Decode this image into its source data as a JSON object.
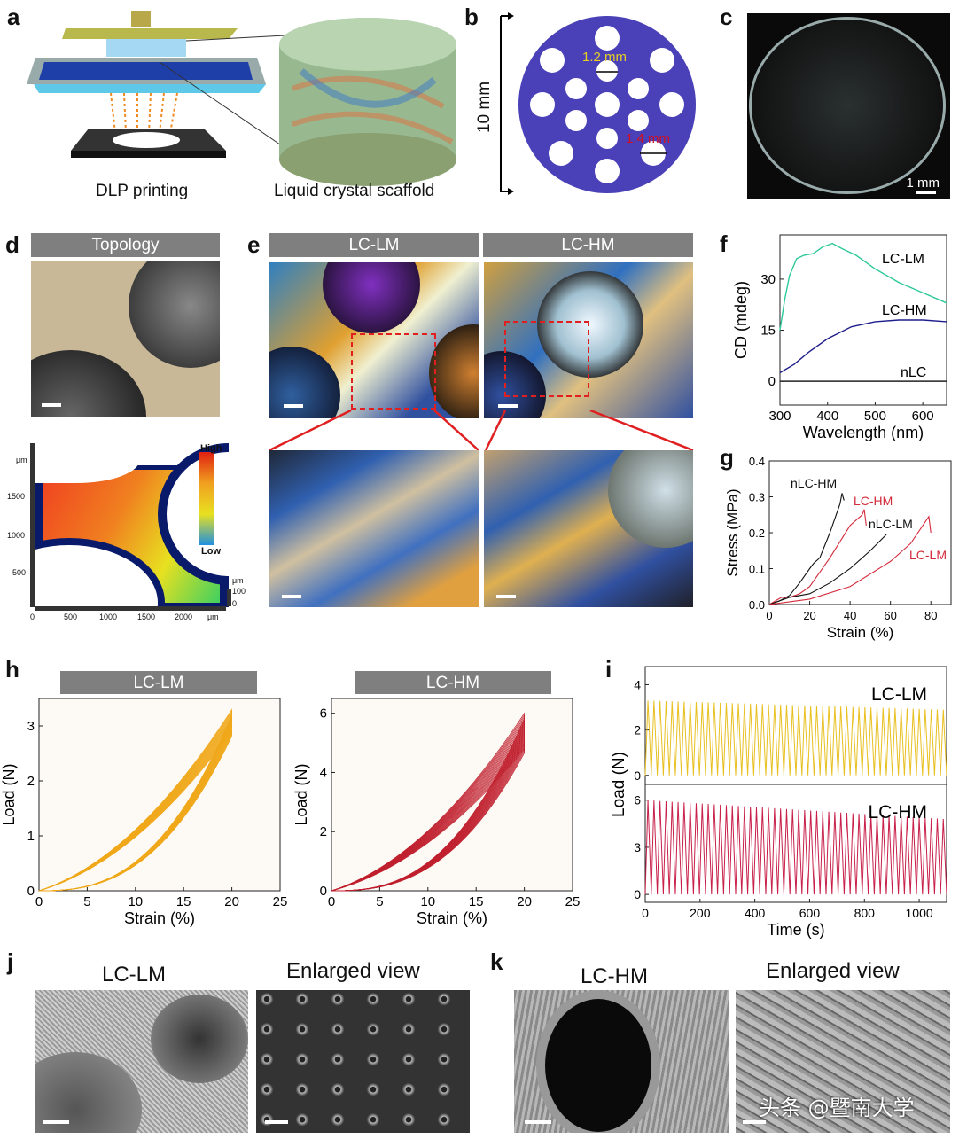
{
  "panels": {
    "a": {
      "label": "a",
      "caption_left": "DLP printing",
      "caption_right": "Liquid crystal scaffold"
    },
    "b": {
      "label": "b",
      "height_label": "10 mm",
      "small_pore": "1.2 mm",
      "large_pore": "1.4 mm"
    },
    "c": {
      "label": "c",
      "scale_bar": "1 mm"
    },
    "d": {
      "label": "d",
      "title": "Topology",
      "map_ylabel_unit": "μm",
      "map_yticks": [
        "1500",
        "1000",
        "500"
      ],
      "map_xticks": [
        "0",
        "500",
        "1000",
        "1500",
        "2000",
        "μm"
      ],
      "colorbar_high": "High",
      "colorbar_low": "Low",
      "z_unit": "μm",
      "z_ticks": [
        "100",
        "0"
      ]
    },
    "e": {
      "label": "e",
      "left_title": "LC-LM",
      "right_title": "LC-HM"
    },
    "f": {
      "label": "f"
    },
    "g": {
      "label": "g"
    },
    "h": {
      "label": "h",
      "left_title": "LC-LM",
      "right_title": "LC-HM"
    },
    "i": {
      "label": "i"
    },
    "j": {
      "label": "j",
      "title": "LC-LM",
      "enlarged": "Enlarged view"
    },
    "k": {
      "label": "k",
      "title": "LC-HM",
      "enlarged": "Enlarged view"
    }
  },
  "watermark": "头条 @暨南大学",
  "chart_data": [
    {
      "id": "f",
      "type": "line",
      "xlabel": "Wavelength (nm)",
      "ylabel": "CD (mdeg)",
      "xlim": [
        300,
        650
      ],
      "ylim": [
        -7,
        43
      ],
      "xticks": [
        300,
        400,
        500,
        600
      ],
      "yticks": [
        0,
        15,
        30
      ],
      "series": [
        {
          "name": "LC-LM",
          "color": "#2ec99a",
          "x": [
            300,
            310,
            320,
            335,
            350,
            370,
            390,
            410,
            430,
            460,
            500,
            550,
            600,
            650
          ],
          "y": [
            15,
            24,
            31,
            36,
            37,
            37.5,
            39.5,
            40.5,
            39,
            37,
            33,
            29,
            26,
            23
          ]
        },
        {
          "name": "LC-HM",
          "color": "#1e1e8c",
          "x": [
            300,
            330,
            360,
            400,
            450,
            500,
            550,
            600,
            650
          ],
          "y": [
            2.5,
            5,
            8.5,
            12.5,
            16,
            17.5,
            18,
            18,
            17.5
          ]
        },
        {
          "name": "nLC",
          "color": "#222222",
          "x": [
            300,
            650
          ],
          "y": [
            0,
            0
          ]
        }
      ]
    },
    {
      "id": "g",
      "type": "line",
      "xlabel": "Strain (%)",
      "ylabel": "Stress (MPa)",
      "xlim": [
        0,
        90
      ],
      "ylim": [
        0,
        0.4
      ],
      "xticks": [
        0,
        20,
        40,
        60,
        80
      ],
      "yticks": [
        0.0,
        0.1,
        0.2,
        0.3,
        0.4
      ],
      "series": [
        {
          "name": "nLC-HM",
          "color": "#111111",
          "x": [
            0,
            5,
            10,
            15,
            20,
            22,
            25,
            30,
            35,
            36,
            37
          ],
          "y": [
            0,
            0.01,
            0.025,
            0.06,
            0.1,
            0.115,
            0.13,
            0.2,
            0.28,
            0.31,
            0.29
          ]
        },
        {
          "name": "LC-HM",
          "color": "#d42a3a",
          "x": [
            0,
            6,
            10,
            15,
            20,
            30,
            40,
            44,
            46,
            47,
            48
          ],
          "y": [
            0,
            0.02,
            0.02,
            0.03,
            0.05,
            0.13,
            0.22,
            0.24,
            0.25,
            0.265,
            0.22
          ]
        },
        {
          "name": "nLC-LM",
          "color": "#111111",
          "x": [
            0,
            10,
            20,
            30,
            40,
            50,
            58
          ],
          "y": [
            0,
            0.02,
            0.03,
            0.06,
            0.1,
            0.15,
            0.195
          ]
        },
        {
          "name": "LC-LM",
          "color": "#d42a3a",
          "x": [
            0,
            20,
            40,
            60,
            70,
            79,
            80
          ],
          "y": [
            0,
            0.015,
            0.05,
            0.12,
            0.17,
            0.245,
            0.2
          ]
        }
      ]
    },
    {
      "id": "h-left",
      "type": "line",
      "xlabel": "Strain (%)",
      "ylabel": "Load (N)",
      "xlim": [
        0,
        25
      ],
      "ylim": [
        0,
        3.5
      ],
      "xticks": [
        0,
        5,
        10,
        15,
        20,
        25
      ],
      "yticks": [
        0,
        1,
        2,
        3
      ],
      "cycles": 20,
      "color": "#f0a81a",
      "max_strain": 20,
      "peak_first": 3.3,
      "peak_last": 2.9
    },
    {
      "id": "h-right",
      "type": "line",
      "xlabel": "Strain (%)",
      "ylabel": "Load (N)",
      "xlim": [
        0,
        25
      ],
      "ylim": [
        0,
        6.5
      ],
      "xticks": [
        0,
        5,
        10,
        15,
        20,
        25
      ],
      "yticks": [
        0,
        2,
        4,
        6
      ],
      "cycles": 20,
      "color": "#c0202e",
      "max_strain": 20,
      "peak_first": 6.0,
      "peak_last": 4.8
    },
    {
      "id": "i",
      "type": "line",
      "xlabel": "Time (s)",
      "ylabel": "Load (N)",
      "xlim": [
        0,
        1100
      ],
      "xticks": [
        0,
        200,
        400,
        600,
        800,
        1000
      ],
      "subplots": [
        {
          "name": "LC-LM",
          "color": "#e8c020",
          "ylim": [
            -0.4,
            4.8
          ],
          "yticks": [
            0,
            2,
            4
          ],
          "cycles": 50,
          "peak_first": 3.3,
          "peak_last": 2.9
        },
        {
          "name": "LC-HM",
          "color": "#c8204a",
          "ylim": [
            -0.5,
            7
          ],
          "yticks": [
            0,
            3,
            6
          ],
          "cycles": 50,
          "peak_first": 6.0,
          "peak_last": 4.8
        }
      ]
    }
  ]
}
